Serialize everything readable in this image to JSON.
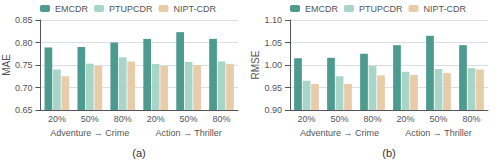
{
  "chart_data": [
    {
      "type": "bar",
      "title": "(a)",
      "ylabel": "MAE",
      "categories": [
        "20%",
        "50%",
        "80%",
        "20%",
        "50%",
        "80%"
      ],
      "group_labels": [
        "Adventure → Crime",
        "Action → Thriller"
      ],
      "series": [
        {
          "name": "EMCDR",
          "color": "#4d9b8f",
          "values": [
            0.789,
            0.79,
            0.8,
            0.808,
            0.823,
            0.808
          ]
        },
        {
          "name": "PTUPCDR",
          "color": "#a8d5c8",
          "values": [
            0.74,
            0.753,
            0.767,
            0.752,
            0.757,
            0.758
          ]
        },
        {
          "name": "NIPT-CDR",
          "color": "#e8ccaa",
          "values": [
            0.725,
            0.748,
            0.758,
            0.748,
            0.75,
            0.752
          ]
        }
      ],
      "ylim": [
        0.65,
        0.85
      ],
      "yticks": [
        0.65,
        {
          "value": 0.7,
          "label": "0.70"
        },
        0.75,
        {
          "value": 0.8,
          "label": "0.80"
        },
        0.85
      ],
      "grid": true,
      "legend": "upper left"
    },
    {
      "type": "bar",
      "title": "(b)",
      "ylabel": "RMSE",
      "categories": [
        "20%",
        "50%",
        "80%",
        "20%",
        "50%",
        "80%"
      ],
      "group_labels": [
        "Adventure → Crime",
        "Action → Thriller"
      ],
      "series": [
        {
          "name": "EMCDR",
          "color": "#4d9b8f",
          "values": [
            1.015,
            1.016,
            1.025,
            1.044,
            1.065,
            1.044
          ]
        },
        {
          "name": "PTUPCDR",
          "color": "#a8d5c8",
          "values": [
            0.965,
            0.975,
            0.998,
            0.985,
            0.991,
            0.993
          ]
        },
        {
          "name": "NIPT-CDR",
          "color": "#e8ccaa",
          "values": [
            0.958,
            0.958,
            0.977,
            0.978,
            0.982,
            0.99
          ]
        }
      ],
      "ylim": [
        0.9,
        1.1
      ],
      "yticks": [
        {
          "value": 0.9,
          "label": "0.90"
        },
        0.95,
        {
          "value": 1.0,
          "label": "1.00"
        },
        1.05,
        {
          "value": 1.1,
          "label": "1.10"
        }
      ],
      "grid": true,
      "legend": "upper left"
    }
  ]
}
